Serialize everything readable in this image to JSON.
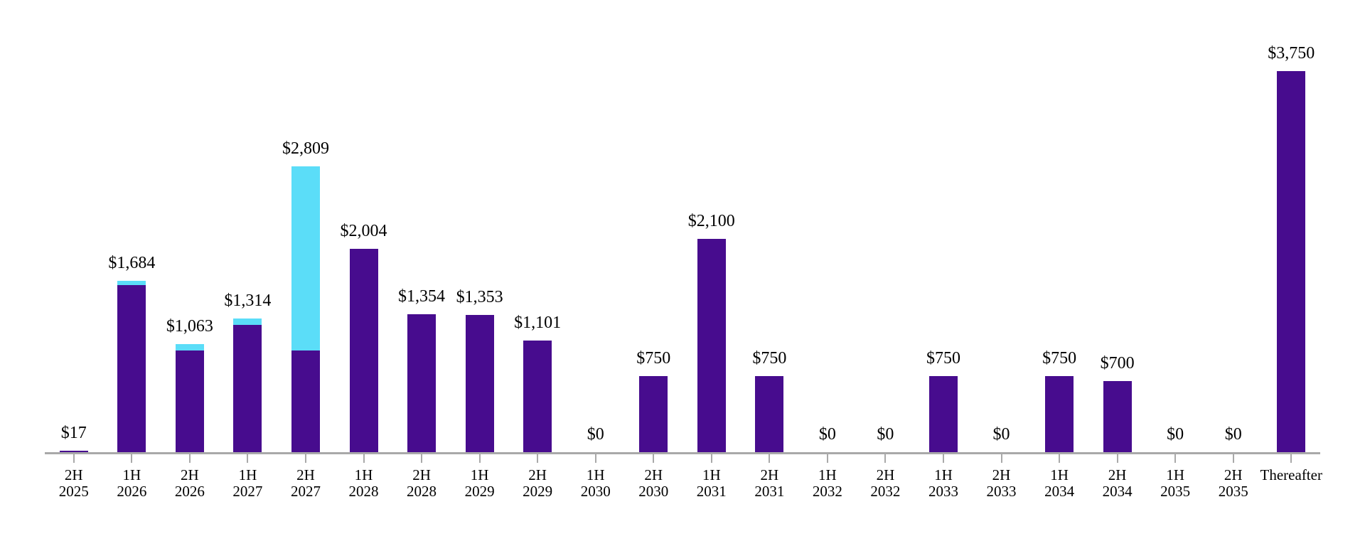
{
  "colors": {
    "bar_primary": "#470C8E",
    "bar_secondary": "#5BDDF8",
    "axis": "#A9A9A9",
    "text": "#000000",
    "background": "#FFFFFF"
  },
  "chart_data": {
    "type": "bar",
    "stacked": true,
    "title": "",
    "xlabel": "",
    "ylabel": "",
    "ylim": [
      0,
      3750
    ],
    "grid": false,
    "legend_position": "none",
    "categories": [
      [
        "2H",
        "2025"
      ],
      [
        "1H",
        "2026"
      ],
      [
        "2H",
        "2026"
      ],
      [
        "1H",
        "2027"
      ],
      [
        "2H",
        "2027"
      ],
      [
        "1H",
        "2028"
      ],
      [
        "2H",
        "2028"
      ],
      [
        "1H",
        "2029"
      ],
      [
        "2H",
        "2029"
      ],
      [
        "1H",
        "2030"
      ],
      [
        "2H",
        "2030"
      ],
      [
        "1H",
        "2031"
      ],
      [
        "2H",
        "2031"
      ],
      [
        "1H",
        "2032"
      ],
      [
        "2H",
        "2032"
      ],
      [
        "1H",
        "2033"
      ],
      [
        "2H",
        "2033"
      ],
      [
        "1H",
        "2034"
      ],
      [
        "2H",
        "2034"
      ],
      [
        "1H",
        "2035"
      ],
      [
        "2H",
        "2035"
      ],
      [
        "Thereafter"
      ]
    ],
    "series": [
      {
        "name": "purple-segment",
        "color_key": "bar_primary",
        "values": [
          17,
          1644,
          1000,
          1250,
          1000,
          2004,
          1354,
          1353,
          1101,
          0,
          750,
          2100,
          750,
          0,
          0,
          750,
          0,
          750,
          700,
          0,
          0,
          3750
        ]
      },
      {
        "name": "cyan-segment",
        "color_key": "bar_secondary",
        "values": [
          0,
          40,
          63,
          64,
          1809,
          0,
          0,
          0,
          0,
          0,
          0,
          0,
          0,
          0,
          0,
          0,
          0,
          0,
          0,
          0,
          0,
          0
        ]
      }
    ],
    "totals": [
      17,
      1684,
      1063,
      1314,
      2809,
      2004,
      1354,
      1353,
      1101,
      0,
      750,
      2100,
      750,
      0,
      0,
      750,
      0,
      750,
      700,
      0,
      0,
      3750
    ],
    "bar_value_labels": [
      "$17",
      "$1,684",
      "$1,063",
      "$1,314",
      "$2,809",
      "$2,004",
      "$1,354",
      "$1,353",
      "$1,101",
      "$0",
      "$750",
      "$2,100",
      "$750",
      "$0",
      "$0",
      "$750",
      "$0",
      "$750",
      "$700",
      "$0",
      "$0",
      "$3,750"
    ]
  }
}
